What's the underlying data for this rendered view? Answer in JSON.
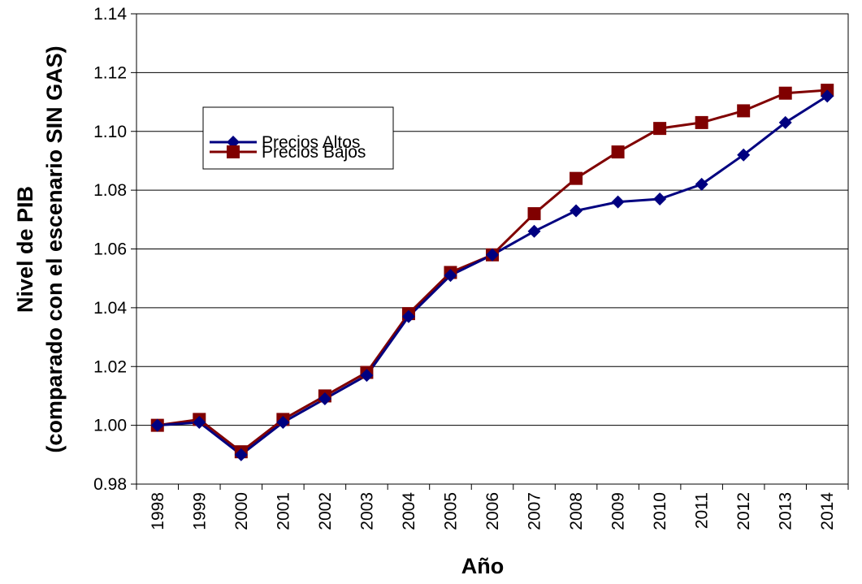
{
  "chart_data": {
    "type": "line",
    "title": "",
    "xlabel": "Año",
    "ylabel_line1": "Nivel de PIB",
    "ylabel_line2": "(comparado con el escenario SIN GAS)",
    "ylim": [
      0.98,
      1.14
    ],
    "yticks": [
      "0.98",
      "1.00",
      "1.02",
      "1.04",
      "1.06",
      "1.08",
      "1.10",
      "1.12",
      "1.14"
    ],
    "grid": true,
    "legend_position": "upper-left",
    "categories": [
      "1998",
      "1999",
      "2000",
      "2001",
      "2002",
      "2003",
      "2004",
      "2005",
      "2006",
      "2007",
      "2008",
      "2009",
      "2010",
      "2011",
      "2012",
      "2013",
      "2014"
    ],
    "series": [
      {
        "name": "Precios Altos",
        "marker": "diamond",
        "color": "#000080",
        "values": [
          1.0,
          1.001,
          0.99,
          1.001,
          1.009,
          1.017,
          1.037,
          1.051,
          1.058,
          1.066,
          1.073,
          1.076,
          1.077,
          1.082,
          1.092,
          1.103,
          1.112
        ]
      },
      {
        "name": "Precios Bajos",
        "marker": "square",
        "color": "#800000",
        "values": [
          1.0,
          1.002,
          0.991,
          1.002,
          1.01,
          1.018,
          1.038,
          1.052,
          1.058,
          1.072,
          1.084,
          1.093,
          1.101,
          1.103,
          1.107,
          1.113,
          1.114
        ]
      }
    ]
  }
}
